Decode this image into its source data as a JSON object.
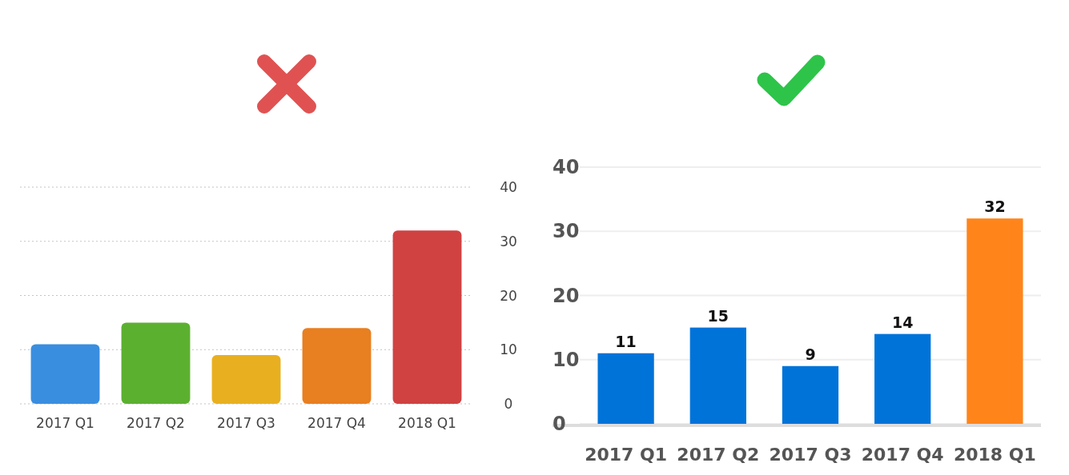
{
  "chart_data": [
    {
      "type": "bar",
      "categories": [
        "2017 Q1",
        "2017 Q2",
        "2017 Q3",
        "2017 Q4",
        "2018 Q1"
      ],
      "values": [
        11,
        15,
        9,
        14,
        32
      ],
      "colors": [
        "#3a8ee0",
        "#5cb030",
        "#e8b020",
        "#e87f20",
        "#d04242"
      ],
      "ylim": [
        0,
        40
      ],
      "yticks": [
        0,
        10,
        20,
        30,
        40
      ],
      "grid": "y"
    },
    {
      "type": "bar",
      "categories": [
        "2017 Q1",
        "2017 Q2",
        "2017 Q3",
        "2017 Q4",
        "2018 Q1"
      ],
      "values": [
        11,
        15,
        9,
        14,
        32
      ],
      "colors": [
        "#0073d9",
        "#0073d9",
        "#0073d9",
        "#0073d9",
        "#ff851b"
      ],
      "ylim": [
        0,
        40
      ],
      "yticks": [
        0,
        10,
        20,
        30,
        40
      ],
      "grid": "y",
      "data_labels": true
    }
  ]
}
